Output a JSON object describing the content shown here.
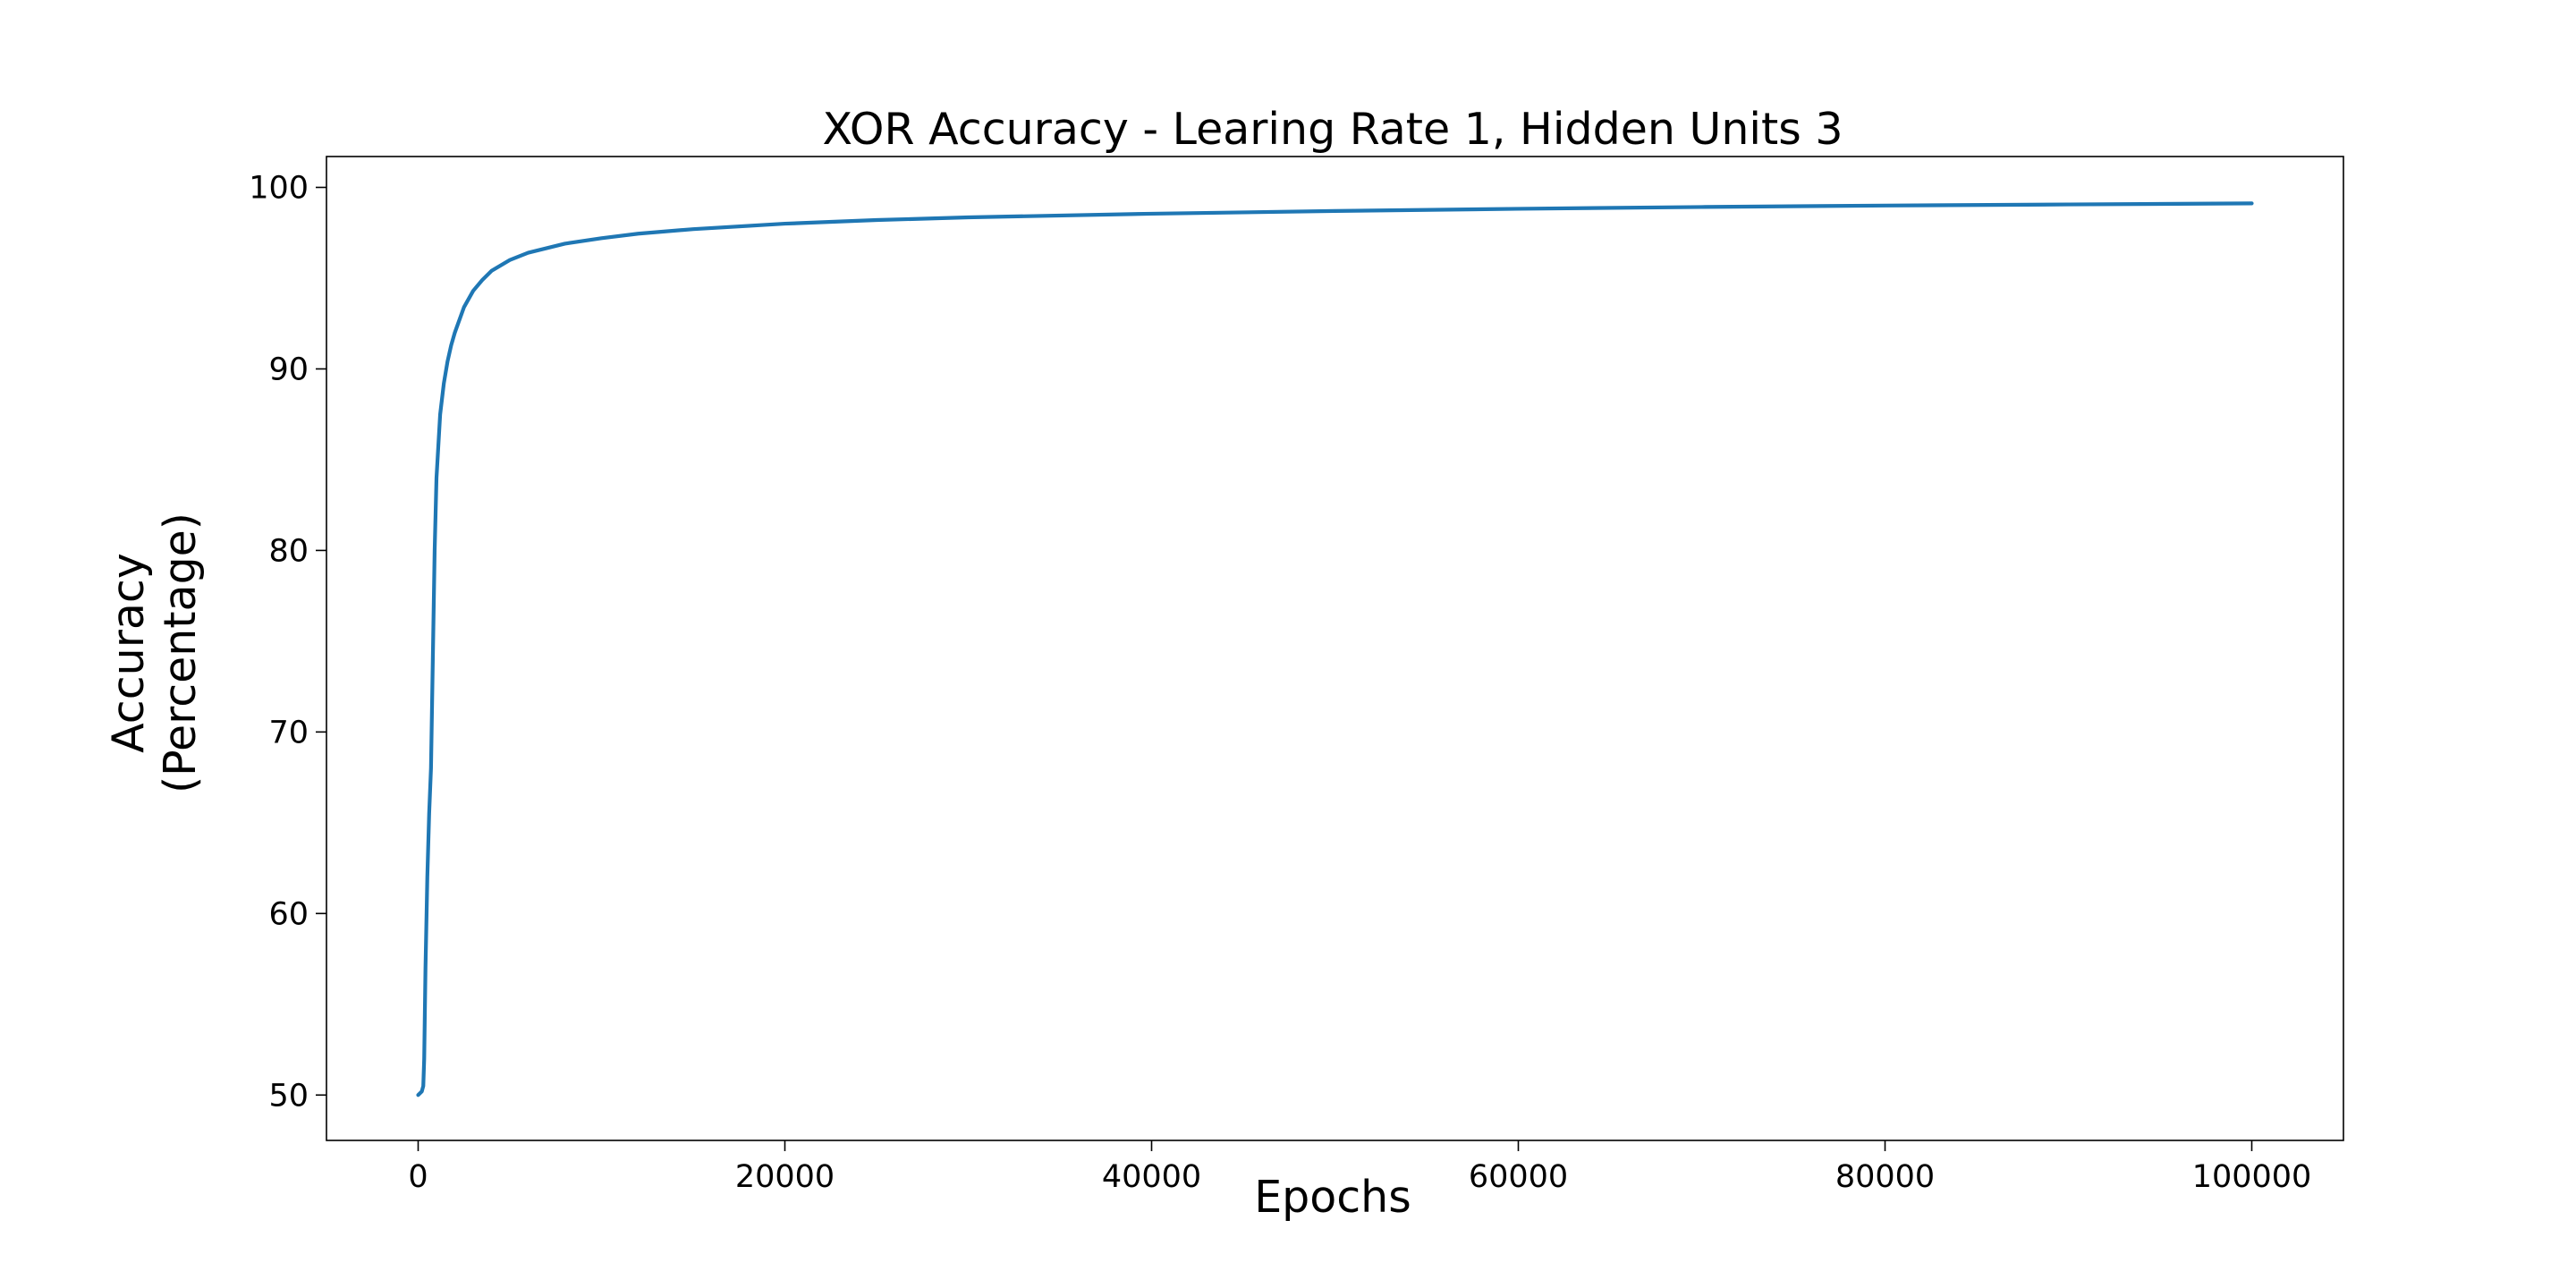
{
  "chart_data": {
    "type": "line",
    "title": "XOR Accuracy - Learing Rate 1, Hidden Units 3",
    "xlabel": "Epochs",
    "ylabel_lines": [
      "Accuracy",
      "(Percentage)"
    ],
    "xlim": [
      -5000,
      105000
    ],
    "ylim": [
      47.5,
      101.7
    ],
    "xticks": [
      0,
      20000,
      40000,
      60000,
      80000,
      100000
    ],
    "xtick_labels": [
      "0",
      "20000",
      "40000",
      "60000",
      "80000",
      "100000"
    ],
    "yticks": [
      50,
      60,
      70,
      80,
      90,
      100
    ],
    "ytick_labels": [
      "50",
      "60",
      "70",
      "80",
      "90",
      "100"
    ],
    "grid": false,
    "legend": "none",
    "series": [
      {
        "color": "#1f77b4",
        "x": [
          0,
          200,
          280,
          330,
          400,
          500,
          600,
          700,
          800,
          900,
          1000,
          1200,
          1400,
          1600,
          1800,
          2000,
          2500,
          3000,
          3500,
          4000,
          5000,
          6000,
          8000,
          10000,
          12000,
          15000,
          20000,
          25000,
          30000,
          40000,
          50000,
          60000,
          70000,
          80000,
          90000,
          100000
        ],
        "y": [
          50.0,
          50.2,
          50.5,
          52.0,
          57.0,
          62.0,
          65.5,
          68.0,
          74.0,
          80.0,
          84.0,
          87.5,
          89.2,
          90.4,
          91.3,
          92.0,
          93.4,
          94.3,
          94.9,
          95.4,
          96.0,
          96.4,
          96.9,
          97.2,
          97.45,
          97.7,
          98.0,
          98.2,
          98.35,
          98.55,
          98.7,
          98.82,
          98.92,
          99.0,
          99.06,
          99.12
        ]
      }
    ]
  }
}
